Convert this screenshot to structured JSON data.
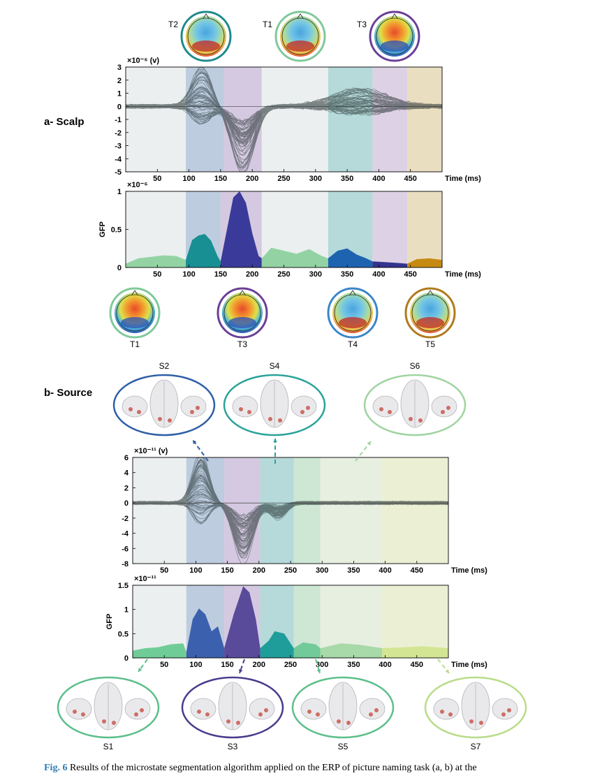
{
  "figure": {
    "section_a": "a- Scalp",
    "section_b": "b- Source",
    "caption_label": "Fig. 6",
    "caption_text": "Results of the microstate segmentation algorithm applied on the ERP of picture naming task (a, b) at the"
  },
  "colors": {
    "grey": "#e7ecec",
    "blue": "#b1c3d9",
    "purple": "#cdbfdb",
    "teal": "#a9d2d3",
    "lilac": "#d6c9e1",
    "tan": "#e6d8b6",
    "green": "#c5e3cd",
    "pale_green": "#e3ecdc",
    "pale_yellow": "#e8edcc"
  },
  "scalp_maps_top": [
    {
      "label": "T2",
      "ring": "#1f8a8c"
    },
    {
      "label": "T1",
      "ring": "#7fc99a"
    },
    {
      "label": "T3",
      "ring": "#6a3f96"
    }
  ],
  "scalp_maps_bottom": [
    {
      "label": "T1",
      "ring": "#7fc99a"
    },
    {
      "label": "T3",
      "ring": "#6a3f96"
    },
    {
      "label": "T4",
      "ring": "#3a86c8"
    },
    {
      "label": "T5",
      "ring": "#b07a1c"
    }
  ],
  "source_maps_top": [
    {
      "label": "S2",
      "ring": "#2e5fa6"
    },
    {
      "label": "S4",
      "ring": "#2aa39a"
    },
    {
      "label": "S6",
      "ring": "#9fd4a0"
    }
  ],
  "source_maps_bottom": [
    {
      "label": "S1",
      "ring": "#5cbf8a"
    },
    {
      "label": "S3",
      "ring": "#4b3a8c"
    },
    {
      "label": "S5",
      "ring": "#5cbf8a"
    },
    {
      "label": "S7",
      "ring": "#b9dc8a"
    }
  ],
  "chart_data": [
    {
      "id": "scalp-erp",
      "type": "line",
      "ylabel": "",
      "unit_label": "×10⁻⁶ (v)",
      "xlabel": "Time (ms)",
      "xlim": [
        0,
        500
      ],
      "ylim": [
        -5,
        3
      ],
      "xticks": [
        50,
        100,
        150,
        200,
        250,
        300,
        350,
        400,
        450
      ],
      "yticks": [
        3,
        2,
        1,
        0,
        -1,
        -2,
        -3,
        -4,
        -5
      ],
      "segments": [
        {
          "start": 0,
          "end": 95,
          "color": "grey"
        },
        {
          "start": 95,
          "end": 155,
          "color": "blue"
        },
        {
          "start": 155,
          "end": 215,
          "color": "purple"
        },
        {
          "start": 215,
          "end": 320,
          "color": "grey"
        },
        {
          "start": 320,
          "end": 390,
          "color": "teal"
        },
        {
          "start": 390,
          "end": 445,
          "color": "lilac"
        },
        {
          "start": 445,
          "end": 500,
          "color": "tan"
        }
      ],
      "channels_description_peaks": [
        {
          "t": 120,
          "amp": 2.2,
          "w": 22
        },
        {
          "t": 185,
          "amp": -5.0,
          "w": 25
        },
        {
          "t": 370,
          "amp": 1.0,
          "w": 60
        }
      ]
    },
    {
      "id": "scalp-gfp",
      "type": "area",
      "ylabel": "GFP",
      "unit_label": "×10⁻⁶",
      "xlabel": "Time (ms)",
      "xlim": [
        0,
        500
      ],
      "ylim": [
        0,
        1
      ],
      "xticks": [
        50,
        100,
        150,
        200,
        250,
        300,
        350,
        400,
        450
      ],
      "yticks": [
        1,
        0.5,
        0
      ],
      "segments": [
        {
          "start": 0,
          "end": 95,
          "color": "grey",
          "fill": "#93d3a3"
        },
        {
          "start": 95,
          "end": 150,
          "color": "blue",
          "fill": "#178f93"
        },
        {
          "start": 150,
          "end": 215,
          "color": "purple",
          "fill": "#3a3a9a"
        },
        {
          "start": 215,
          "end": 320,
          "color": "grey",
          "fill": "#93d3a3"
        },
        {
          "start": 320,
          "end": 390,
          "color": "teal",
          "fill": "#1e63b0"
        },
        {
          "start": 390,
          "end": 445,
          "color": "lilac",
          "fill": "#34338f"
        },
        {
          "start": 445,
          "end": 500,
          "color": "tan",
          "fill": "#c68a13"
        }
      ],
      "x": [
        0,
        20,
        40,
        60,
        80,
        95,
        105,
        115,
        125,
        135,
        145,
        150,
        160,
        170,
        180,
        190,
        200,
        210,
        215,
        230,
        250,
        270,
        290,
        310,
        320,
        335,
        350,
        365,
        380,
        390,
        410,
        430,
        445,
        460,
        480,
        500
      ],
      "values": [
        0.05,
        0.12,
        0.14,
        0.16,
        0.15,
        0.1,
        0.36,
        0.42,
        0.44,
        0.35,
        0.15,
        0.08,
        0.5,
        0.92,
        1.0,
        0.85,
        0.45,
        0.15,
        0.12,
        0.26,
        0.22,
        0.18,
        0.24,
        0.15,
        0.12,
        0.22,
        0.25,
        0.17,
        0.12,
        0.08,
        0.07,
        0.06,
        0.05,
        0.11,
        0.12,
        0.1
      ]
    },
    {
      "id": "source-erp",
      "type": "line",
      "ylabel": "",
      "unit_label": "×10⁻¹¹ (v)",
      "xlabel": "Time (ms)",
      "xlim": [
        0,
        500
      ],
      "ylim": [
        -8,
        6
      ],
      "xticks": [
        50,
        100,
        150,
        200,
        250,
        300,
        350,
        400,
        450
      ],
      "yticks": [
        6,
        4,
        2,
        0,
        -2,
        -4,
        -6,
        -8
      ],
      "segments": [
        {
          "start": 0,
          "end": 85,
          "color": "grey"
        },
        {
          "start": 85,
          "end": 145,
          "color": "blue"
        },
        {
          "start": 145,
          "end": 202,
          "color": "purple"
        },
        {
          "start": 202,
          "end": 255,
          "color": "teal"
        },
        {
          "start": 255,
          "end": 297,
          "color": "green"
        },
        {
          "start": 297,
          "end": 395,
          "color": "pale_green"
        },
        {
          "start": 395,
          "end": 500,
          "color": "pale_yellow"
        }
      ],
      "channels_description_peaks": [
        {
          "t": 108,
          "amp": 5.0,
          "w": 18
        },
        {
          "t": 175,
          "amp": -7.5,
          "w": 22
        },
        {
          "t": 230,
          "amp": -2.0,
          "w": 18
        }
      ]
    },
    {
      "id": "source-gfp",
      "type": "area",
      "ylabel": "GFP",
      "unit_label": "×10⁻¹¹",
      "xlabel": "Time (ms)",
      "xlim": [
        0,
        500
      ],
      "ylim": [
        0,
        1.5
      ],
      "xticks": [
        50,
        100,
        150,
        200,
        250,
        300,
        350,
        400,
        450
      ],
      "yticks": [
        1.5,
        1,
        0.5,
        0
      ],
      "segments": [
        {
          "start": 0,
          "end": 85,
          "color": "grey",
          "fill": "#6fcc96"
        },
        {
          "start": 85,
          "end": 145,
          "color": "blue",
          "fill": "#3b60ad"
        },
        {
          "start": 145,
          "end": 202,
          "color": "purple",
          "fill": "#5a4a9a"
        },
        {
          "start": 202,
          "end": 255,
          "color": "teal",
          "fill": "#1f9d9a"
        },
        {
          "start": 255,
          "end": 297,
          "color": "green",
          "fill": "#72c99a"
        },
        {
          "start": 297,
          "end": 395,
          "color": "pale_green",
          "fill": "#a8d9a8"
        },
        {
          "start": 395,
          "end": 500,
          "color": "pale_yellow",
          "fill": "#d3e592"
        }
      ],
      "x": [
        0,
        20,
        40,
        60,
        80,
        85,
        95,
        105,
        115,
        125,
        135,
        145,
        160,
        175,
        185,
        195,
        202,
        215,
        225,
        240,
        255,
        270,
        290,
        297,
        330,
        360,
        395,
        430,
        460,
        500
      ],
      "values": [
        0.15,
        0.2,
        0.22,
        0.28,
        0.3,
        0.12,
        0.8,
        1.02,
        0.9,
        0.55,
        0.65,
        0.2,
        0.9,
        1.48,
        1.35,
        0.8,
        0.2,
        0.35,
        0.55,
        0.5,
        0.2,
        0.32,
        0.28,
        0.2,
        0.3,
        0.27,
        0.2,
        0.22,
        0.24,
        0.2
      ]
    }
  ]
}
